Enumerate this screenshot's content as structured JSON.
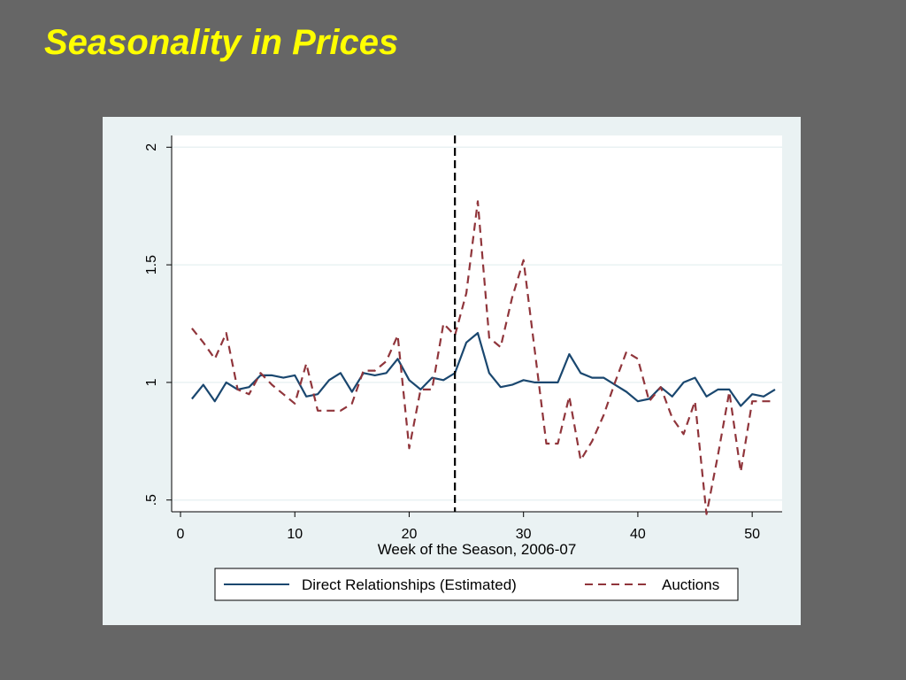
{
  "slide": {
    "title": "Seasonality in Prices"
  },
  "colors": {
    "background": "#666666",
    "title": "#ffff00",
    "panel": "#eaf2f3",
    "plot": "#ffffff",
    "series_direct": "#1a476f",
    "series_auctions": "#90353b",
    "reference_line": "#000000"
  },
  "chart_data": {
    "type": "line",
    "title": "",
    "xlabel": "Week of the Season, 2006-07",
    "ylabel": "",
    "xlim": [
      0,
      52
    ],
    "ylim": [
      0.45,
      2.05
    ],
    "xticks": [
      0,
      10,
      20,
      30,
      40,
      50
    ],
    "xtick_labels": [
      "0",
      "10",
      "20",
      "30",
      "40",
      "50"
    ],
    "yticks": [
      0.5,
      1,
      1.5,
      2
    ],
    "ytick_labels": [
      ".5",
      "1",
      "1.5",
      "2"
    ],
    "grid": "horizontal",
    "legend_position": "bottom",
    "reference_line_x": 24,
    "x": [
      1,
      2,
      3,
      4,
      5,
      6,
      7,
      8,
      9,
      10,
      11,
      12,
      13,
      14,
      15,
      16,
      17,
      18,
      19,
      20,
      21,
      22,
      23,
      24,
      25,
      26,
      27,
      28,
      29,
      30,
      31,
      32,
      33,
      34,
      35,
      36,
      37,
      38,
      39,
      40,
      41,
      42,
      43,
      44,
      45,
      46,
      47,
      48,
      49,
      50,
      51,
      52
    ],
    "series": [
      {
        "name": "Direct Relationships (Estimated)",
        "style": "solid",
        "values": [
          0.93,
          0.99,
          0.92,
          1.0,
          0.97,
          0.98,
          1.03,
          1.03,
          1.02,
          1.03,
          0.94,
          0.95,
          1.01,
          1.04,
          0.96,
          1.04,
          1.03,
          1.04,
          1.1,
          1.01,
          0.97,
          1.02,
          1.01,
          1.04,
          1.17,
          1.21,
          1.04,
          0.98,
          0.99,
          1.01,
          1.0,
          1.0,
          1.0,
          1.12,
          1.04,
          1.02,
          1.02,
          0.99,
          0.96,
          0.92,
          0.93,
          0.98,
          0.94,
          1.0,
          1.02,
          0.94,
          0.97,
          0.97,
          0.9,
          0.95,
          0.94,
          0.97
        ]
      },
      {
        "name": "Auctions",
        "style": "dashed",
        "values": [
          1.23,
          1.17,
          1.1,
          1.21,
          0.97,
          0.95,
          1.04,
          0.99,
          0.95,
          0.91,
          1.08,
          0.88,
          0.88,
          0.88,
          0.91,
          1.05,
          1.05,
          1.09,
          1.2,
          0.72,
          0.97,
          0.97,
          1.25,
          1.2,
          1.38,
          1.77,
          1.19,
          1.15,
          1.36,
          1.52,
          1.13,
          0.74,
          0.74,
          0.94,
          0.67,
          0.75,
          0.86,
          1.0,
          1.13,
          1.1,
          0.92,
          0.98,
          0.85,
          0.78,
          0.92,
          0.44,
          0.69,
          0.96,
          0.62,
          0.92,
          0.92,
          0.92
        ]
      }
    ]
  }
}
